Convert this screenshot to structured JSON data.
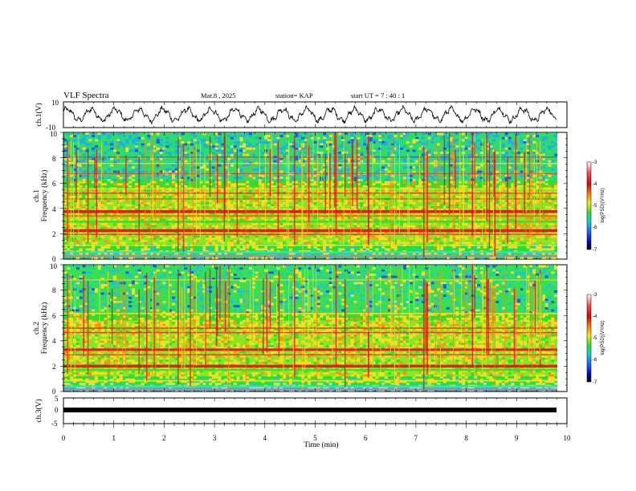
{
  "header": {
    "title": "VLF Spectra",
    "date": "Mar.8  , 2025",
    "station": "station= KAP",
    "start": "start  UT  =   7 : 40 : 1"
  },
  "chart_data": [
    {
      "type": "line",
      "name": "ch1-waveform",
      "ylabel": "ch.1(V)",
      "ylim": [
        -10,
        10
      ],
      "yticks": [
        "10",
        "-10"
      ],
      "xlim": [
        0,
        10
      ],
      "description_values": "oscillating voltage trace, approx. amplitude 5 V, period ~0.5 min"
    },
    {
      "type": "heatmap",
      "name": "ch1-spectrogram",
      "ylabel_channel": "ch.1",
      "ylabel": "Frequency  (kHz)",
      "ylim": [
        0,
        10
      ],
      "yticks": [
        "0",
        "2",
        "4",
        "6",
        "8",
        "10"
      ],
      "xlim": [
        0,
        9.8
      ],
      "colorbar": {
        "label": "log(PSD)(V²/Hz)",
        "range": [
          -7,
          -3
        ],
        "ticks": [
          "-3",
          "-4",
          "-5",
          "-6",
          "-7"
        ]
      }
    },
    {
      "type": "heatmap",
      "name": "ch2-spectrogram",
      "ylabel_channel": "ch.2",
      "ylabel": "Frequency  (kHz)",
      "ylim": [
        0,
        10
      ],
      "yticks": [
        "0",
        "2",
        "4",
        "6",
        "8",
        "10"
      ],
      "xlim": [
        0,
        9.8
      ],
      "colorbar": {
        "label": "log(PSD)(V²/Hz)",
        "range": [
          -7,
          -3
        ],
        "ticks": [
          "-3",
          "-4",
          "-5",
          "-6",
          "-7"
        ]
      }
    },
    {
      "type": "line",
      "name": "ch3-signal",
      "ylabel": "ch.3(V)",
      "ylim": [
        -5,
        5
      ],
      "yticks": [
        "5",
        "0",
        "-5"
      ],
      "xlim": [
        0,
        10
      ],
      "values": [
        -0.2,
        -0.2
      ]
    }
  ],
  "xaxis": {
    "label": "Time  (min)",
    "ticks": [
      "0",
      "1",
      "2",
      "3",
      "4",
      "5",
      "6",
      "7",
      "8",
      "9",
      "10"
    ]
  },
  "colors": {
    "spectrum_background": "#22e830",
    "band_red": "#e81818",
    "band_yellow": "#f0e020"
  }
}
